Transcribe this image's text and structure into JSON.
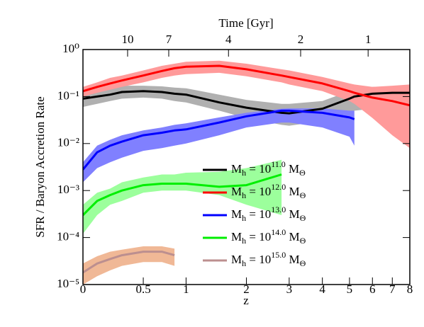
{
  "chart_data": {
    "type": "line",
    "xlabel": "z",
    "ylabel": "SFR / Baryon Accretion Rate",
    "x2label": "Time [Gyr]",
    "xscale": "log1p",
    "yscale": "log",
    "xlim": [
      0,
      8
    ],
    "ylim": [
      1e-05,
      1
    ],
    "xticks": [
      0,
      0.5,
      1,
      2,
      3,
      4,
      5,
      6,
      7,
      8
    ],
    "x2ticks": [
      {
        "value": 0.35,
        "label": "10"
      },
      {
        "value": 0.78,
        "label": "7"
      },
      {
        "value": 1.66,
        "label": "4"
      },
      {
        "value": 3.32,
        "label": "2"
      },
      {
        "value": 5.8,
        "label": "1"
      }
    ],
    "yticks": [
      {
        "value": 1,
        "label": "10⁰"
      },
      {
        "value": 0.1,
        "label": "10⁻¹"
      },
      {
        "value": 0.01,
        "label": "10⁻²"
      },
      {
        "value": 0.001,
        "label": "10⁻³"
      },
      {
        "value": 0.0001,
        "label": "10⁻⁴"
      },
      {
        "value": 1e-05,
        "label": "10⁻⁵"
      }
    ],
    "legend": "lower center",
    "x": [
      0,
      0.1,
      0.2,
      0.3,
      0.5,
      0.7,
      0.85,
      1,
      1.5,
      2,
      2.8,
      3,
      4,
      5,
      5.2,
      6,
      7,
      8
    ],
    "series": [
      {
        "name": [
          "M",
          "h",
          " = 10",
          "11.0",
          " M",
          "Θ"
        ],
        "color": "#000000",
        "band_color": "#b0b0b0",
        "values": [
          0.09,
          0.1,
          0.11,
          0.125,
          0.13,
          0.125,
          0.115,
          0.11,
          0.075,
          0.058,
          0.045,
          0.044,
          0.055,
          0.09,
          0.1,
          0.115,
          0.12,
          0.12
        ],
        "lower": [
          0.06,
          0.07,
          0.08,
          0.09,
          0.095,
          0.09,
          0.08,
          0.075,
          0.05,
          0.035,
          0.025,
          0.024,
          0.03,
          0.045,
          0.05,
          0.055,
          0.06,
          0.06
        ],
        "upper": [
          0.13,
          0.14,
          0.15,
          0.17,
          0.17,
          0.165,
          0.155,
          0.15,
          0.11,
          0.085,
          0.07,
          0.07,
          0.08,
          0.13,
          0.14,
          0.16,
          0.16,
          0.16
        ]
      },
      {
        "name": [
          "M",
          "h",
          " = 10",
          "12.0",
          " M",
          "Θ"
        ],
        "color": "#ff0000",
        "band_color": "#ff9a9a",
        "values": [
          0.13,
          0.16,
          0.19,
          0.22,
          0.28,
          0.35,
          0.4,
          0.43,
          0.45,
          0.38,
          0.28,
          0.26,
          0.19,
          0.13,
          0.12,
          0.095,
          0.08,
          0.065
        ],
        "lower": [
          0.1,
          0.12,
          0.14,
          0.16,
          0.2,
          0.25,
          0.28,
          0.3,
          0.32,
          0.27,
          0.2,
          0.18,
          0.13,
          0.08,
          0.07,
          0.035,
          0.015,
          0.008
        ],
        "upper": [
          0.16,
          0.2,
          0.25,
          0.28,
          0.36,
          0.45,
          0.5,
          0.55,
          0.58,
          0.5,
          0.38,
          0.36,
          0.26,
          0.19,
          0.18,
          0.16,
          0.17,
          0.18
        ]
      },
      {
        "name": [
          "M",
          "h",
          " = 10",
          "13.0",
          " M",
          "Θ"
        ],
        "color": "#0000ff",
        "band_color": "#8080ff",
        "values": [
          0.0028,
          0.0065,
          0.009,
          0.011,
          0.015,
          0.017,
          0.019,
          0.02,
          0.028,
          0.038,
          0.05,
          0.05,
          0.045,
          0.036,
          0.033,
          null,
          null,
          null
        ],
        "lower": [
          0.0015,
          0.003,
          0.004,
          0.005,
          0.007,
          0.008,
          0.009,
          0.01,
          0.015,
          0.022,
          0.028,
          0.028,
          0.022,
          0.014,
          0.009,
          null,
          null,
          null
        ],
        "upper": [
          0.004,
          0.009,
          0.012,
          0.015,
          0.019,
          0.022,
          0.025,
          0.027,
          0.036,
          0.045,
          0.055,
          0.056,
          0.056,
          0.05,
          0.05,
          null,
          null,
          null
        ]
      },
      {
        "name": [
          "M",
          "h",
          " = 10",
          "14.0",
          " M",
          "Θ"
        ],
        "color": "#00ee00",
        "band_color": "#9cff9c",
        "values": [
          0.0003,
          0.0006,
          0.0008,
          0.001,
          0.0013,
          0.0014,
          0.0014,
          0.0014,
          0.0012,
          0.0013,
          0.0022,
          null,
          null,
          null,
          null,
          null,
          null,
          null
        ],
        "lower": [
          0.00012,
          0.0003,
          0.0005,
          0.0006,
          0.0009,
          0.001,
          0.001,
          0.001,
          0.0008,
          0.0005,
          0.0003,
          null,
          null,
          null,
          null,
          null,
          null,
          null
        ],
        "upper": [
          0.0005,
          0.0009,
          0.0011,
          0.0015,
          0.0019,
          0.0022,
          0.0022,
          0.0024,
          0.0025,
          0.003,
          0.0045,
          null,
          null,
          null,
          null,
          null,
          null,
          null
        ]
      },
      {
        "name": [
          "M",
          "h",
          " = 10",
          "15.0",
          " M",
          "Θ"
        ],
        "color": "#bc8f8f",
        "band_color": "#f0b896",
        "values": [
          1.8e-05,
          2.8e-05,
          3.5e-05,
          4.2e-05,
          5e-05,
          5e-05,
          4.2e-05,
          null,
          null,
          null,
          null,
          null,
          null,
          null,
          null,
          null,
          null,
          null
        ],
        "lower": [
          1e-05,
          1.5e-05,
          2e-05,
          2.5e-05,
          3e-05,
          3e-05,
          2.5e-05,
          null,
          null,
          null,
          null,
          null,
          null,
          null,
          null,
          null,
          null,
          null
        ],
        "upper": [
          2.8e-05,
          4e-05,
          5e-05,
          5.5e-05,
          6.5e-05,
          6.5e-05,
          5.8e-05,
          null,
          null,
          null,
          null,
          null,
          null,
          null,
          null,
          null,
          null,
          null
        ]
      }
    ]
  }
}
